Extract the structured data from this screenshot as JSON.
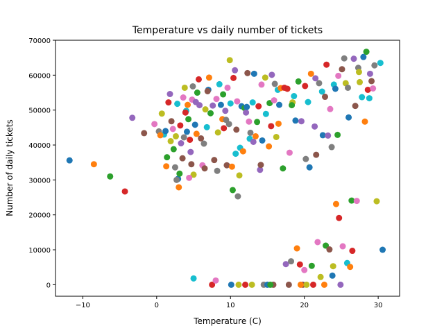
{
  "chart_data": {
    "type": "scatter",
    "title": "Temperature vs daily number of tickets",
    "xlabel": "Temperature (C)",
    "ylabel": "Number of daily tickets",
    "xlim": [
      -13.7,
      32.9
    ],
    "ylim": [
      -3300,
      70000
    ],
    "xticks": [
      -10,
      0,
      10,
      20,
      30
    ],
    "yticks": [
      0,
      10000,
      20000,
      30000,
      40000,
      50000,
      60000,
      70000
    ],
    "xtick_labels": [
      "−10",
      "0",
      "10",
      "20",
      "30"
    ],
    "ytick_labels": [
      "0",
      "10000",
      "20000",
      "30000",
      "40000",
      "50000",
      "60000",
      "70000"
    ],
    "grid": false,
    "legend": "none",
    "palette": [
      "#1f77b4",
      "#ff7f0e",
      "#2ca02c",
      "#d62728",
      "#9467bd",
      "#8c564b",
      "#e377c2",
      "#7f7f7f",
      "#bcbd22",
      "#17becf"
    ],
    "points": [
      [
        -11.8,
        35600
      ],
      [
        -8.5,
        34500
      ],
      [
        -6.3,
        31000
      ],
      [
        -4.3,
        26700
      ],
      [
        -3.3,
        47800
      ],
      [
        -1.7,
        43400
      ],
      [
        -0.3,
        46000
      ],
      [
        0.3,
        43900
      ],
      [
        0.7,
        49000
      ],
      [
        1.0,
        43000
      ],
      [
        1.2,
        44000
      ],
      [
        1.3,
        33900
      ],
      [
        1.4,
        36500
      ],
      [
        1.6,
        52200
      ],
      [
        1.8,
        54600
      ],
      [
        2.0,
        46800
      ],
      [
        2.2,
        44600
      ],
      [
        2.5,
        33600
      ],
      [
        2.6,
        42500
      ],
      [
        2.8,
        51800
      ],
      [
        2.9,
        30300
      ],
      [
        3.0,
        27900
      ],
      [
        3.1,
        31800
      ],
      [
        3.2,
        45600
      ],
      [
        3.3,
        40500
      ],
      [
        3.5,
        36200
      ],
      [
        3.6,
        53600
      ],
      [
        3.7,
        42200
      ],
      [
        3.8,
        56400
      ],
      [
        4.0,
        49800
      ],
      [
        4.1,
        43800
      ],
      [
        4.2,
        51500
      ],
      [
        4.3,
        47400
      ],
      [
        4.5,
        41500
      ],
      [
        4.6,
        38000
      ],
      [
        4.7,
        34500
      ],
      [
        4.8,
        53000
      ],
      [
        4.9,
        56800
      ],
      [
        5.0,
        31500
      ],
      [
        5.0,
        1800
      ],
      [
        5.2,
        45800
      ],
      [
        5.4,
        43200
      ],
      [
        5.5,
        55000
      ],
      [
        5.7,
        58800
      ],
      [
        5.8,
        51400
      ],
      [
        6.0,
        41900
      ],
      [
        6.2,
        34200
      ],
      [
        6.4,
        40400
      ],
      [
        6.6,
        50200
      ],
      [
        6.8,
        45100
      ],
      [
        7.0,
        55800
      ],
      [
        7.1,
        59300
      ],
      [
        7.3,
        49100
      ],
      [
        7.5,
        0
      ],
      [
        7.6,
        51300
      ],
      [
        7.8,
        35700
      ],
      [
        8.0,
        1200
      ],
      [
        8.2,
        32600
      ],
      [
        8.3,
        43600
      ],
      [
        8.5,
        57400
      ],
      [
        8.7,
        51500
      ],
      [
        8.9,
        47400
      ],
      [
        9.0,
        54500
      ],
      [
        9.1,
        44800
      ],
      [
        9.3,
        49800
      ],
      [
        9.5,
        34200
      ],
      [
        9.6,
        56400
      ],
      [
        9.8,
        46000
      ],
      [
        9.9,
        64300
      ],
      [
        10.0,
        51900
      ],
      [
        10.1,
        0
      ],
      [
        10.2,
        33800
      ],
      [
        10.3,
        27100
      ],
      [
        10.4,
        59200
      ],
      [
        10.6,
        61400
      ],
      [
        10.8,
        44400
      ],
      [
        10.9,
        52500
      ],
      [
        11.0,
        25300
      ],
      [
        11.1,
        0
      ],
      [
        11.3,
        39200
      ],
      [
        11.5,
        51100
      ],
      [
        11.7,
        38200
      ],
      [
        11.9,
        50600
      ],
      [
        12.0,
        0
      ],
      [
        12.1,
        49300
      ],
      [
        12.3,
        60600
      ],
      [
        12.5,
        46700
      ],
      [
        12.7,
        43500
      ],
      [
        12.9,
        0
      ],
      [
        13.0,
        52200
      ],
      [
        13.2,
        60400
      ],
      [
        13.4,
        42500
      ],
      [
        13.6,
        46600
      ],
      [
        13.8,
        51100
      ],
      [
        14.0,
        32900
      ],
      [
        14.1,
        34300
      ],
      [
        14.2,
        57300
      ],
      [
        14.5,
        0
      ],
      [
        14.7,
        59300
      ],
      [
        14.8,
        48900
      ],
      [
        15.0,
        0
      ],
      [
        15.2,
        39600
      ],
      [
        15.3,
        52000
      ],
      [
        15.5,
        45400
      ],
      [
        15.6,
        60100
      ],
      [
        15.8,
        0
      ],
      [
        15.9,
        52800
      ],
      [
        16.0,
        57500
      ],
      [
        16.2,
        42300
      ],
      [
        16.4,
        55800
      ],
      [
        16.6,
        51500
      ],
      [
        16.8,
        56300
      ],
      [
        17.1,
        33300
      ],
      [
        17.3,
        56400
      ],
      [
        17.5,
        5900
      ],
      [
        17.9,
        0
      ],
      [
        18.0,
        37800
      ],
      [
        18.2,
        6700
      ],
      [
        18.4,
        52200
      ],
      [
        18.6,
        54000
      ],
      [
        18.8,
        47000
      ],
      [
        19.0,
        10400
      ],
      [
        19.2,
        58200
      ],
      [
        19.4,
        5800
      ],
      [
        19.6,
        46800
      ],
      [
        19.8,
        0
      ],
      [
        20.0,
        4200
      ],
      [
        20.2,
        36000
      ],
      [
        20.3,
        0
      ],
      [
        20.5,
        52300
      ],
      [
        20.7,
        33600
      ],
      [
        20.9,
        60400
      ],
      [
        21.0,
        5400
      ],
      [
        21.2,
        0
      ],
      [
        21.4,
        45300
      ],
      [
        21.6,
        37200
      ],
      [
        21.8,
        12200
      ],
      [
        22.0,
        57700
      ],
      [
        22.2,
        2200
      ],
      [
        22.4,
        55300
      ],
      [
        22.5,
        42800
      ],
      [
        22.7,
        0
      ],
      [
        22.9,
        11200
      ],
      [
        23.0,
        63000
      ],
      [
        23.2,
        42700
      ],
      [
        23.4,
        10100
      ],
      [
        23.5,
        50300
      ],
      [
        23.7,
        39400
      ],
      [
        23.9,
        5300
      ],
      [
        24.0,
        57300
      ],
      [
        24.2,
        56100
      ],
      [
        24.3,
        23100
      ],
      [
        24.5,
        42900
      ],
      [
        24.7,
        19100
      ],
      [
        24.9,
        0
      ],
      [
        25.1,
        61700
      ],
      [
        25.2,
        11000
      ],
      [
        25.4,
        64800
      ],
      [
        25.6,
        57700
      ],
      [
        25.8,
        6200
      ],
      [
        26.0,
        47900
      ],
      [
        26.2,
        5100
      ],
      [
        26.4,
        24100
      ],
      [
        26.5,
        9700
      ],
      [
        26.7,
        64700
      ],
      [
        26.9,
        51200
      ],
      [
        27.1,
        24000
      ],
      [
        27.3,
        62100
      ],
      [
        27.5,
        58000
      ],
      [
        27.8,
        53700
      ],
      [
        28.0,
        65200
      ],
      [
        28.2,
        46700
      ],
      [
        28.4,
        66700
      ],
      [
        28.6,
        55800
      ],
      [
        28.9,
        60400
      ],
      [
        29.1,
        58300
      ],
      [
        29.3,
        56200
      ],
      [
        29.5,
        62800
      ],
      [
        29.8,
        23900
      ],
      [
        30.3,
        63500
      ],
      [
        30.6,
        10000
      ],
      [
        0.5,
        42800
      ],
      [
        2.3,
        38800
      ],
      [
        3.9,
        49300
      ],
      [
        5.3,
        52300
      ],
      [
        6.9,
        55400
      ],
      [
        8.1,
        53200
      ],
      [
        9.4,
        47200
      ],
      [
        11.2,
        31300
      ],
      [
        12.6,
        41800
      ],
      [
        14.3,
        41300
      ],
      [
        16.5,
        46100
      ],
      [
        18.3,
        51400
      ],
      [
        20.1,
        56900
      ],
      [
        21.5,
        59100
      ],
      [
        22.8,
        53800
      ],
      [
        24.6,
        59800
      ],
      [
        25.9,
        56400
      ],
      [
        27.4,
        60900
      ],
      [
        28.8,
        53400
      ],
      [
        23.8,
        2600
      ],
      [
        19.5,
        0
      ],
      [
        15.4,
        0
      ],
      [
        17.7,
        56100
      ],
      [
        13.1,
        40900
      ],
      [
        6.5,
        33300
      ],
      [
        4.4,
        30600
      ],
      [
        2.7,
        30000
      ],
      [
        1.9,
        41100
      ],
      [
        10.7,
        37500
      ],
      [
        12.2,
        50900
      ]
    ]
  }
}
